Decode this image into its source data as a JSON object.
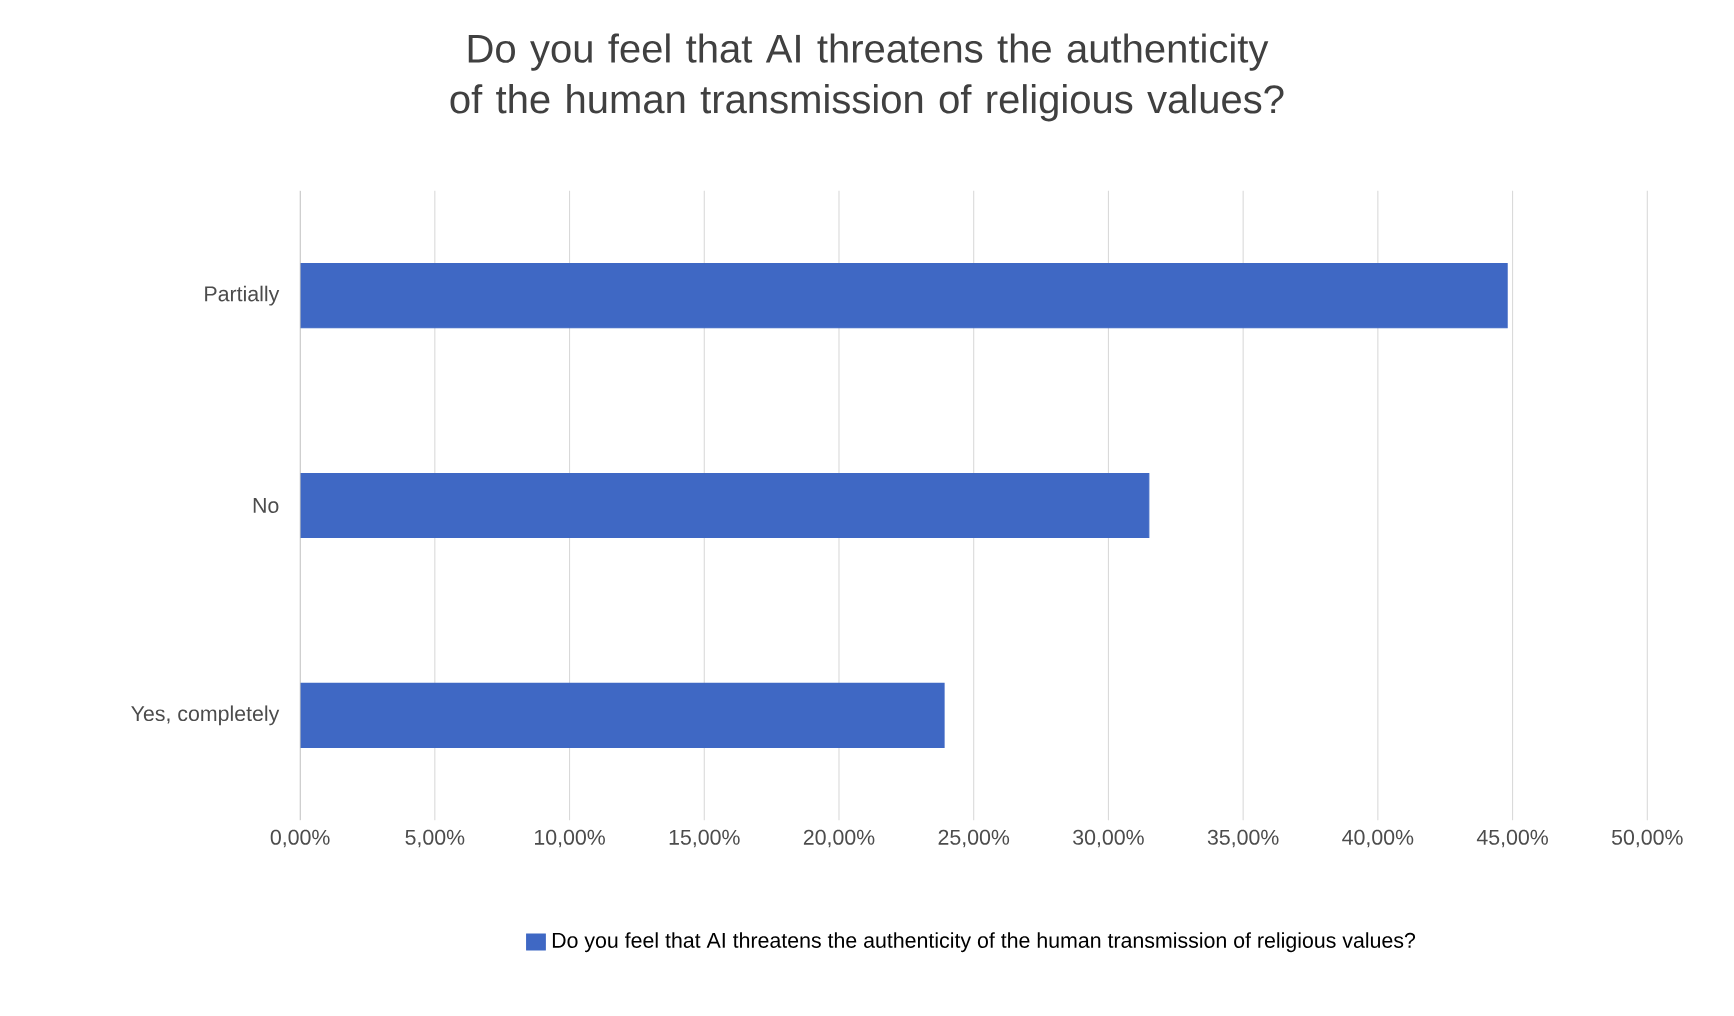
{
  "chart_data": {
    "type": "bar",
    "orientation": "horizontal",
    "title": "Do you feel that AI threatens the authenticity of the human transmission of religious values?",
    "categories": [
      "Partially",
      "No",
      "Yes, completely"
    ],
    "series": [
      {
        "name": "Do you feel that AI threatens the authenticity of the human transmission of religious values?",
        "color": "#3f68c4",
        "values": [
          44.8,
          31.5,
          23.9
        ]
      }
    ],
    "xlim": [
      0,
      50
    ],
    "xticks": [
      {
        "value": 0,
        "label": "0,00%"
      },
      {
        "value": 5,
        "label": "5,00%"
      },
      {
        "value": 10,
        "label": "10,00%"
      },
      {
        "value": 15,
        "label": "15,00%"
      },
      {
        "value": 20,
        "label": "20,00%"
      },
      {
        "value": 25,
        "label": "25,00%"
      },
      {
        "value": 30,
        "label": "30,00%"
      },
      {
        "value": 35,
        "label": "35,00%"
      },
      {
        "value": 40,
        "label": "40,00%"
      },
      {
        "value": 45,
        "label": "45,00%"
      },
      {
        "value": 50,
        "label": "50,00%"
      }
    ],
    "grid": "x",
    "legend": "bottom"
  }
}
